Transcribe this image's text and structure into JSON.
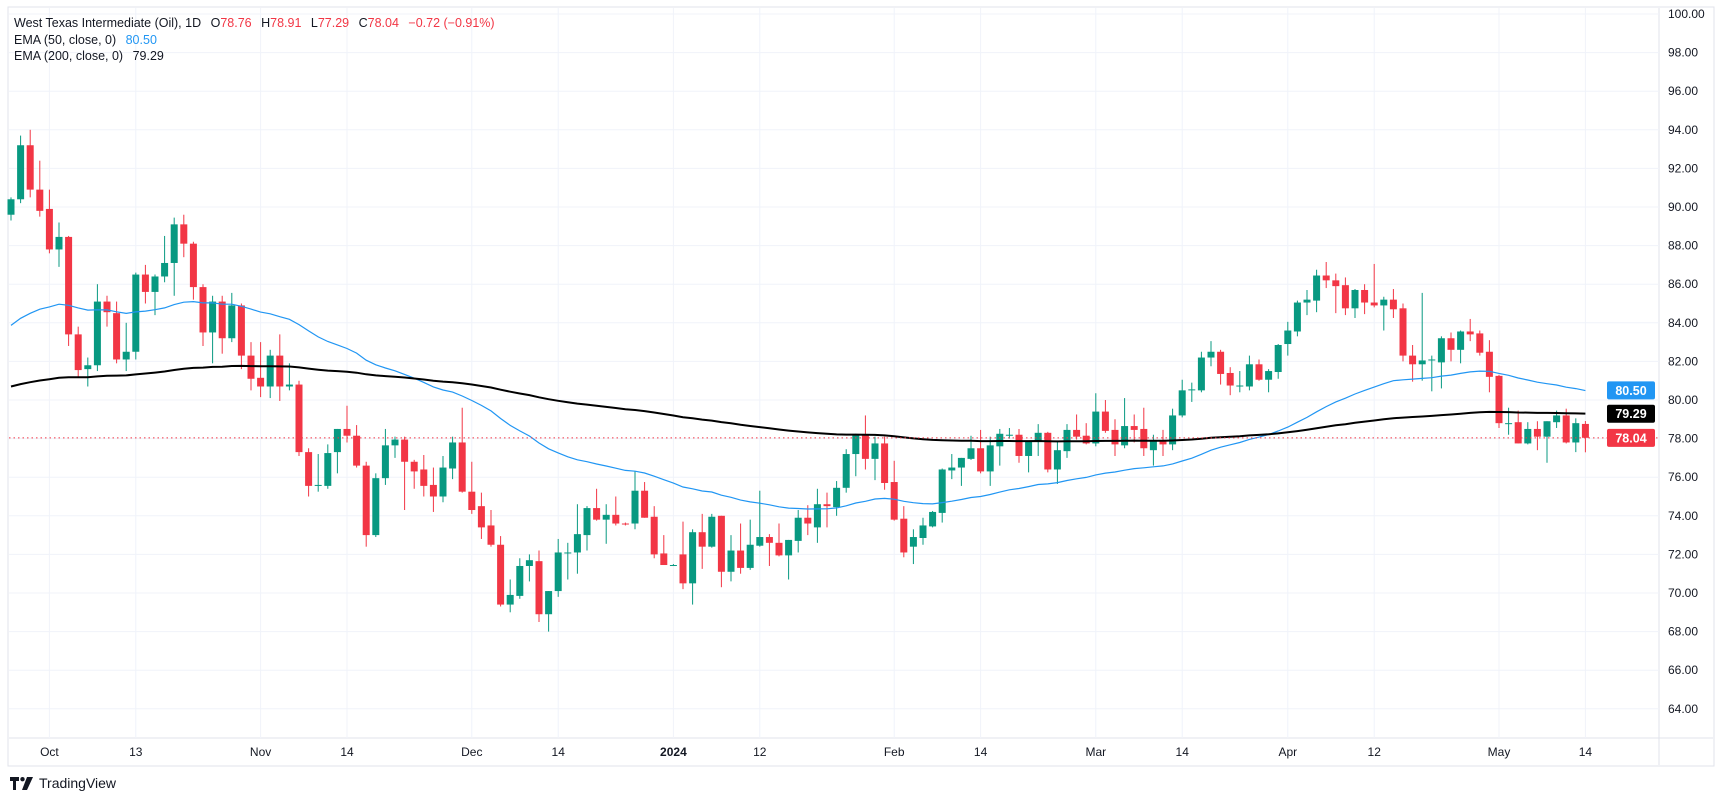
{
  "legend": {
    "symbol": "West Texas Intermediate (Oil), 1D",
    "open_label": "O",
    "open": "78.76",
    "high_label": "H",
    "high": "78.91",
    "low_label": "L",
    "low": "77.29",
    "close_label": "C",
    "close": "78.04",
    "change": "−0.72 (−0.91%)",
    "ema50_label": "EMA (50, close, 0)",
    "ema50_value": "80.50",
    "ema200_label": "EMA (200, close, 0)",
    "ema200_value": "79.29"
  },
  "brand": {
    "name": "TradingView",
    "icon": "tradingview-logo-icon"
  },
  "colors": {
    "up": "#089981",
    "down": "#f23645",
    "ema50": "#2196f3",
    "ema200": "#000000",
    "grid": "#f0f3fa",
    "text": "#131722"
  },
  "chart_data": {
    "type": "candlestick",
    "title": "West Texas Intermediate (Oil), 1D",
    "ylim": [
      62.5,
      100.3
    ],
    "y_ticks": [
      "64.00",
      "66.00",
      "68.00",
      "70.00",
      "72.00",
      "74.00",
      "76.00",
      "78.00",
      "80.00",
      "82.00",
      "84.00",
      "86.00",
      "88.00",
      "90.00",
      "92.00",
      "94.00",
      "96.00",
      "98.00",
      "100.00"
    ],
    "x_ticks": [
      {
        "label": "Oct",
        "date": "2023-10-02"
      },
      {
        "label": "13",
        "date": "2023-10-13"
      },
      {
        "label": "Nov",
        "date": "2023-11-01"
      },
      {
        "label": "14",
        "date": "2023-11-14"
      },
      {
        "label": "Dec",
        "date": "2023-12-01"
      },
      {
        "label": "14",
        "date": "2023-12-14"
      },
      {
        "label": "2024",
        "date": "2024-01-01"
      },
      {
        "label": "12",
        "date": "2024-01-12"
      },
      {
        "label": "Feb",
        "date": "2024-02-01"
      },
      {
        "label": "14",
        "date": "2024-02-14"
      },
      {
        "label": "Mar",
        "date": "2024-03-01"
      },
      {
        "label": "14",
        "date": "2024-03-14"
      },
      {
        "label": "Apr",
        "date": "2024-04-01"
      },
      {
        "label": "12",
        "date": "2024-04-12"
      },
      {
        "label": "May",
        "date": "2024-05-01"
      },
      {
        "label": "14",
        "date": "2024-05-14"
      }
    ],
    "price_tags": [
      {
        "name": "EMA 50",
        "value": "80.50",
        "color": "#2196f3"
      },
      {
        "name": "EMA 200",
        "value": "79.29",
        "color": "#000000"
      },
      {
        "name": "Last",
        "value": "78.04",
        "color": "#f23645"
      }
    ],
    "last_price": 78.04,
    "indicators": [
      {
        "name": "EMA (50, close, 0)",
        "last": 80.5,
        "color": "#2196f3"
      },
      {
        "name": "EMA (200, close, 0)",
        "last": 79.29,
        "color": "#000000"
      }
    ],
    "ohlc_columns": [
      "date",
      "open",
      "high",
      "low",
      "close"
    ],
    "candles": [
      [
        "2023-09-26",
        89.6,
        90.5,
        89.3,
        90.4
      ],
      [
        "2023-09-27",
        90.4,
        93.7,
        90.2,
        93.2
      ],
      [
        "2023-09-28",
        93.2,
        94.0,
        90.5,
        90.9
      ],
      [
        "2023-09-29",
        90.9,
        92.4,
        89.5,
        89.8
      ],
      [
        "2023-10-02",
        89.9,
        90.9,
        87.6,
        87.8
      ],
      [
        "2023-10-03",
        87.8,
        89.2,
        86.9,
        88.45
      ],
      [
        "2023-10-04",
        88.45,
        88.5,
        82.8,
        83.4
      ],
      [
        "2023-10-05",
        83.4,
        83.8,
        81.2,
        81.55
      ],
      [
        "2023-10-06",
        81.6,
        82.2,
        80.7,
        81.8
      ],
      [
        "2023-10-09",
        81.8,
        86.0,
        81.5,
        85.1
      ],
      [
        "2023-10-10",
        85.1,
        85.4,
        83.8,
        84.55
      ],
      [
        "2023-10-11",
        84.5,
        85.1,
        81.9,
        82.1
      ],
      [
        "2023-10-12",
        82.1,
        84.0,
        81.5,
        82.5
      ],
      [
        "2023-10-13",
        82.5,
        86.6,
        82.1,
        86.5
      ],
      [
        "2023-10-16",
        86.5,
        87.0,
        85.0,
        85.6
      ],
      [
        "2023-10-17",
        85.6,
        86.5,
        84.4,
        86.4
      ],
      [
        "2023-10-18",
        86.4,
        88.5,
        86.1,
        87.1
      ],
      [
        "2023-10-19",
        87.1,
        89.45,
        85.4,
        89.1
      ],
      [
        "2023-10-20",
        89.1,
        89.6,
        87.4,
        88.1
      ],
      [
        "2023-10-23",
        88.1,
        88.2,
        85.2,
        85.85
      ],
      [
        "2023-10-24",
        85.85,
        86.0,
        82.8,
        83.5
      ],
      [
        "2023-10-25",
        83.5,
        85.4,
        81.9,
        85.1
      ],
      [
        "2023-10-26",
        85.1,
        85.4,
        82.4,
        83.2
      ],
      [
        "2023-10-27",
        83.2,
        85.55,
        83.0,
        84.9
      ],
      [
        "2023-10-30",
        84.9,
        85.0,
        81.6,
        82.3
      ],
      [
        "2023-10-31",
        82.3,
        83.0,
        80.5,
        81.1
      ],
      [
        "2023-11-01",
        81.15,
        83.0,
        80.15,
        80.7
      ],
      [
        "2023-11-02",
        80.7,
        82.6,
        80.1,
        82.3
      ],
      [
        "2023-11-03",
        82.3,
        83.4,
        79.95,
        80.7
      ],
      [
        "2023-11-06",
        80.7,
        81.9,
        80.5,
        80.8
      ],
      [
        "2023-11-07",
        80.8,
        81.0,
        77.1,
        77.3
      ],
      [
        "2023-11-08",
        77.3,
        77.5,
        75.0,
        75.55
      ],
      [
        "2023-11-09",
        75.55,
        77.2,
        75.25,
        75.6
      ],
      [
        "2023-11-10",
        75.55,
        77.7,
        75.4,
        77.25
      ],
      [
        "2023-11-13",
        77.3,
        78.5,
        76.2,
        78.5
      ],
      [
        "2023-11-14",
        78.5,
        79.7,
        77.8,
        78.15
      ],
      [
        "2023-11-15",
        78.15,
        78.7,
        76.5,
        76.6
      ],
      [
        "2023-11-16",
        76.6,
        76.8,
        72.4,
        73.0
      ],
      [
        "2023-11-17",
        73.0,
        76.2,
        72.9,
        75.95
      ],
      [
        "2023-11-20",
        75.95,
        78.5,
        75.6,
        77.65
      ],
      [
        "2023-11-21",
        77.65,
        78.1,
        77.0,
        77.95
      ],
      [
        "2023-11-22",
        77.95,
        78.1,
        74.3,
        76.8
      ],
      [
        "2023-11-23",
        76.8,
        76.9,
        75.4,
        76.3
      ],
      [
        "2023-11-24",
        76.4,
        77.15,
        75.0,
        75.55
      ],
      [
        "2023-11-27",
        75.6,
        76.5,
        74.2,
        75.0
      ],
      [
        "2023-11-28",
        75.0,
        77.1,
        74.7,
        76.5
      ],
      [
        "2023-11-29",
        76.45,
        78.1,
        75.9,
        77.8
      ],
      [
        "2023-11-30",
        77.8,
        79.6,
        75.2,
        75.25
      ],
      [
        "2023-12-01",
        75.25,
        76.8,
        74.1,
        74.3
      ],
      [
        "2023-12-04",
        74.5,
        75.2,
        72.8,
        73.4
      ],
      [
        "2023-12-05",
        73.5,
        74.3,
        72.4,
        72.5
      ],
      [
        "2023-12-06",
        72.5,
        72.95,
        69.3,
        69.4
      ],
      [
        "2023-12-07",
        69.4,
        70.7,
        69.0,
        69.9
      ],
      [
        "2023-12-08",
        69.85,
        71.8,
        69.7,
        71.4
      ],
      [
        "2023-12-11",
        71.4,
        72.0,
        70.6,
        71.7
      ],
      [
        "2023-12-12",
        71.65,
        72.2,
        68.5,
        68.9
      ],
      [
        "2023-12-13",
        68.9,
        70.1,
        68.0,
        70.1
      ],
      [
        "2023-12-14",
        70.1,
        72.8,
        69.8,
        72.1
      ],
      [
        "2023-12-15",
        72.1,
        72.6,
        70.7,
        72.1
      ],
      [
        "2023-12-18",
        72.1,
        74.6,
        71.0,
        73.05
      ],
      [
        "2023-12-19",
        73.0,
        74.5,
        72.2,
        74.4
      ],
      [
        "2023-12-20",
        74.4,
        75.4,
        73.75,
        73.8
      ],
      [
        "2023-12-21",
        73.8,
        74.6,
        72.55,
        74.05
      ],
      [
        "2023-12-22",
        74.05,
        75.0,
        73.5,
        73.6
      ],
      [
        "2023-12-25",
        73.6,
        73.65,
        73.5,
        73.55
      ],
      [
        "2023-12-26",
        73.6,
        76.3,
        73.3,
        75.3
      ],
      [
        "2023-12-27",
        75.3,
        75.75,
        73.9,
        73.9
      ],
      [
        "2023-12-28",
        73.95,
        74.5,
        71.8,
        72.0
      ],
      [
        "2023-12-29",
        72.05,
        73.0,
        71.45,
        71.45
      ],
      [
        "2024-01-01",
        71.45,
        71.5,
        71.4,
        71.45
      ],
      [
        "2024-01-02",
        72.0,
        73.7,
        70.2,
        70.5
      ],
      [
        "2024-01-03",
        70.5,
        73.3,
        69.4,
        73.15
      ],
      [
        "2024-01-04",
        73.15,
        74.1,
        71.25,
        72.4
      ],
      [
        "2024-01-05",
        72.4,
        74.1,
        72.35,
        73.95
      ],
      [
        "2024-01-08",
        74.0,
        74.0,
        70.3,
        71.1
      ],
      [
        "2024-01-09",
        71.1,
        73.0,
        70.6,
        72.2
      ],
      [
        "2024-01-10",
        72.2,
        73.6,
        71.0,
        71.3
      ],
      [
        "2024-01-11",
        71.3,
        73.8,
        71.2,
        72.5
      ],
      [
        "2024-01-12",
        72.45,
        75.3,
        72.4,
        72.9
      ],
      [
        "2024-01-15",
        72.9,
        73.05,
        71.4,
        72.6
      ],
      [
        "2024-01-16",
        72.6,
        73.6,
        71.9,
        71.95
      ],
      [
        "2024-01-17",
        71.95,
        72.75,
        70.7,
        72.75
      ],
      [
        "2024-01-18",
        72.7,
        74.3,
        72.1,
        73.9
      ],
      [
        "2024-01-19",
        73.9,
        74.55,
        73.0,
        73.6
      ],
      [
        "2024-01-22",
        73.4,
        75.4,
        72.6,
        74.6
      ],
      [
        "2024-01-23",
        74.6,
        75.2,
        73.4,
        74.5
      ],
      [
        "2024-01-24",
        74.45,
        75.8,
        74.0,
        75.45
      ],
      [
        "2024-01-25",
        75.45,
        77.45,
        75.2,
        77.2
      ],
      [
        "2024-01-26",
        77.2,
        78.25,
        76.05,
        78.2
      ],
      [
        "2024-01-29",
        78.2,
        79.2,
        76.4,
        76.95
      ],
      [
        "2024-01-30",
        76.95,
        78.1,
        75.85,
        77.75
      ],
      [
        "2024-01-31",
        77.75,
        78.1,
        75.35,
        75.7
      ],
      [
        "2024-02-01",
        75.75,
        76.85,
        73.75,
        73.8
      ],
      [
        "2024-02-02",
        73.85,
        74.5,
        71.85,
        72.1
      ],
      [
        "2024-02-05",
        72.4,
        73.3,
        71.5,
        72.9
      ],
      [
        "2024-02-06",
        72.85,
        73.9,
        72.5,
        73.5
      ],
      [
        "2024-02-07",
        73.45,
        74.25,
        73.4,
        74.2
      ],
      [
        "2024-02-08",
        74.15,
        76.45,
        73.65,
        76.4
      ],
      [
        "2024-02-09",
        76.35,
        77.2,
        75.9,
        76.5
      ],
      [
        "2024-02-12",
        76.5,
        77.0,
        75.55,
        77.0
      ],
      [
        "2024-02-13",
        76.95,
        78.15,
        76.9,
        77.5
      ],
      [
        "2024-02-14",
        77.5,
        78.45,
        76.2,
        76.3
      ],
      [
        "2024-02-15",
        76.3,
        78.1,
        75.55,
        77.65
      ],
      [
        "2024-02-16",
        77.6,
        78.5,
        76.6,
        78.25
      ],
      [
        "2024-02-19",
        78.2,
        78.55,
        78.0,
        78.2
      ],
      [
        "2024-02-20",
        78.2,
        78.5,
        76.75,
        77.1
      ],
      [
        "2024-02-21",
        77.1,
        77.9,
        76.25,
        77.9
      ],
      [
        "2024-02-22",
        77.85,
        78.75,
        77.1,
        78.3
      ],
      [
        "2024-02-23",
        78.3,
        78.35,
        76.25,
        76.4
      ],
      [
        "2024-02-26",
        76.4,
        77.85,
        75.65,
        77.4
      ],
      [
        "2024-02-27",
        77.35,
        78.75,
        77.0,
        78.45
      ],
      [
        "2024-02-28",
        78.45,
        79.25,
        77.95,
        78.1
      ],
      [
        "2024-02-29",
        78.15,
        78.8,
        77.7,
        77.75
      ],
      [
        "2024-03-01",
        77.75,
        80.35,
        77.6,
        79.4
      ],
      [
        "2024-03-04",
        79.4,
        80.0,
        78.3,
        78.4
      ],
      [
        "2024-03-05",
        78.45,
        79.0,
        77.1,
        77.7
      ],
      [
        "2024-03-06",
        77.65,
        80.1,
        77.5,
        78.65
      ],
      [
        "2024-03-07",
        78.65,
        79.25,
        77.8,
        78.45
      ],
      [
        "2024-03-08",
        78.5,
        79.6,
        77.1,
        77.5
      ],
      [
        "2024-03-11",
        77.4,
        78.2,
        76.6,
        77.9
      ],
      [
        "2024-03-12",
        77.9,
        78.45,
        77.1,
        77.7
      ],
      [
        "2024-03-13",
        77.7,
        79.55,
        77.4,
        79.2
      ],
      [
        "2024-03-14",
        79.2,
        81.05,
        79.1,
        80.5
      ],
      [
        "2024-03-15",
        80.5,
        80.9,
        79.9,
        80.55
      ],
      [
        "2024-03-18",
        80.5,
        82.5,
        80.4,
        82.2
      ],
      [
        "2024-03-19",
        82.2,
        83.05,
        81.75,
        82.5
      ],
      [
        "2024-03-20",
        82.5,
        82.6,
        80.8,
        81.35
      ],
      [
        "2024-03-21",
        81.4,
        81.7,
        80.25,
        80.75
      ],
      [
        "2024-03-22",
        80.75,
        81.5,
        80.4,
        80.75
      ],
      [
        "2024-03-25",
        80.7,
        82.3,
        80.5,
        81.85
      ],
      [
        "2024-03-26",
        81.85,
        82.1,
        81.0,
        81.05
      ],
      [
        "2024-03-27",
        81.05,
        81.6,
        80.4,
        81.5
      ],
      [
        "2024-03-28",
        81.45,
        82.9,
        81.1,
        82.85
      ],
      [
        "2024-04-01",
        82.9,
        84.05,
        82.3,
        83.6
      ],
      [
        "2024-04-02",
        83.55,
        85.15,
        83.3,
        85.05
      ],
      [
        "2024-04-03",
        85.05,
        85.7,
        84.4,
        85.2
      ],
      [
        "2024-04-04",
        85.15,
        86.75,
        84.55,
        86.45
      ],
      [
        "2024-04-05",
        86.45,
        87.15,
        85.8,
        86.2
      ],
      [
        "2024-04-08",
        86.2,
        86.55,
        84.5,
        85.9
      ],
      [
        "2024-04-09",
        85.95,
        86.35,
        84.4,
        84.75
      ],
      [
        "2024-04-10",
        84.75,
        85.75,
        84.25,
        85.7
      ],
      [
        "2024-04-11",
        85.7,
        86.0,
        84.45,
        85.05
      ],
      [
        "2024-04-12",
        85.05,
        87.05,
        84.8,
        84.9
      ],
      [
        "2024-04-15",
        84.9,
        85.35,
        83.6,
        85.2
      ],
      [
        "2024-04-16",
        85.2,
        85.75,
        84.25,
        84.7
      ],
      [
        "2024-04-17",
        84.75,
        85.0,
        82.0,
        82.3
      ],
      [
        "2024-04-18",
        82.3,
        82.85,
        80.95,
        81.85
      ],
      [
        "2024-04-19",
        81.85,
        85.55,
        81.0,
        82.05
      ],
      [
        "2024-04-22",
        82.05,
        82.3,
        80.45,
        82.1
      ],
      [
        "2024-04-23",
        81.95,
        83.3,
        80.6,
        83.2
      ],
      [
        "2024-04-24",
        83.2,
        83.5,
        82.0,
        82.6
      ],
      [
        "2024-04-25",
        82.6,
        83.6,
        81.9,
        83.55
      ],
      [
        "2024-04-26",
        83.55,
        84.2,
        83.05,
        83.4
      ],
      [
        "2024-04-29",
        83.45,
        83.6,
        82.3,
        82.45
      ],
      [
        "2024-04-30",
        82.5,
        83.1,
        80.4,
        81.2
      ],
      [
        "2024-05-01",
        81.25,
        81.3,
        78.55,
        78.8
      ],
      [
        "2024-05-02",
        78.8,
        79.6,
        78.2,
        78.8
      ],
      [
        "2024-05-03",
        78.85,
        79.45,
        77.75,
        77.75
      ],
      [
        "2024-05-06",
        77.75,
        78.85,
        77.7,
        78.5
      ],
      [
        "2024-05-07",
        78.5,
        78.9,
        77.4,
        78.1
      ],
      [
        "2024-05-08",
        78.1,
        78.9,
        76.75,
        78.9
      ],
      [
        "2024-05-09",
        78.85,
        79.45,
        78.55,
        79.2
      ],
      [
        "2024-05-10",
        79.2,
        79.55,
        77.75,
        77.8
      ],
      [
        "2024-05-13",
        77.8,
        79.05,
        77.3,
        78.8
      ],
      [
        "2024-05-14",
        78.76,
        78.91,
        77.29,
        78.04
      ]
    ]
  }
}
